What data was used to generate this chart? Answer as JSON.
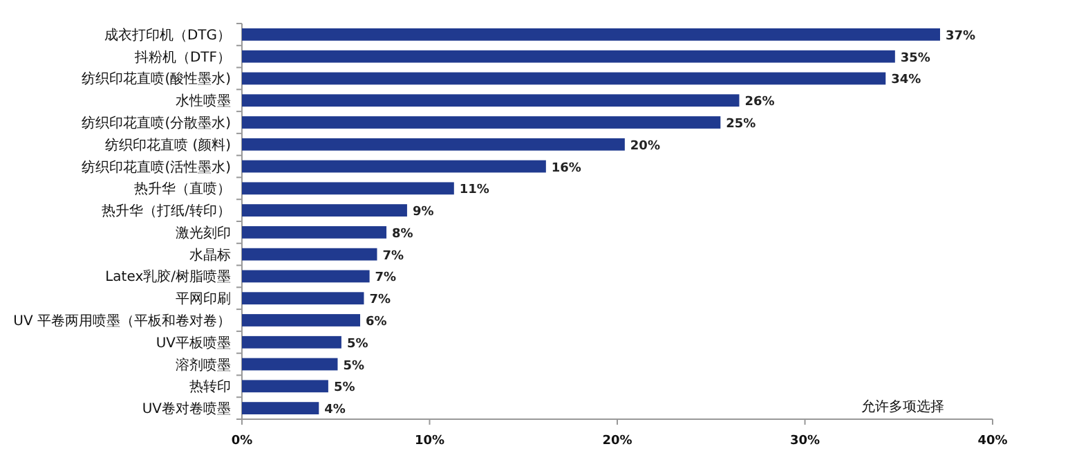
{
  "chart_data": {
    "type": "bar",
    "orientation": "horizontal",
    "color": "#203a8f",
    "categories": [
      "成衣打印机（DTG）",
      "抖粉机（DTF）",
      "纺织印花直喷(酸性墨水)",
      "水性喷墨",
      "纺织印花直喷(分散墨水)",
      "纺织印花直喷 (颜料)",
      "纺织印花直喷(活性墨水)",
      "热升华（直喷）",
      "热升华（打纸/转印）",
      "激光刻印",
      "水晶标",
      "Latex乳胶/树脂喷墨",
      "平网印刷",
      "UV 平卷两用喷墨（平板和卷对卷）",
      "UV平板喷墨",
      "溶剂喷墨",
      "热转印",
      "UV卷对卷喷墨"
    ],
    "values": [
      37.2,
      34.8,
      34.3,
      26.5,
      25.5,
      20.4,
      16.2,
      11.3,
      8.8,
      7.7,
      7.2,
      6.8,
      6.5,
      6.3,
      5.3,
      5.1,
      4.6,
      4.1
    ],
    "value_labels": [
      "37%",
      "35%",
      "34%",
      "26%",
      "25%",
      "20%",
      "16%",
      "11%",
      "9%",
      "8%",
      "7%",
      "7%",
      "7%",
      "6%",
      "5%",
      "5%",
      "5%",
      "4%"
    ],
    "xlim": [
      0,
      40
    ],
    "xticks": [
      {
        "value": 0,
        "label": "0%"
      },
      {
        "value": 10,
        "label": "10%"
      },
      {
        "value": 20,
        "label": "20%"
      },
      {
        "value": 30,
        "label": "30%"
      },
      {
        "value": 40,
        "label": "40%"
      }
    ],
    "annotations": [
      "允许多项选择"
    ]
  }
}
